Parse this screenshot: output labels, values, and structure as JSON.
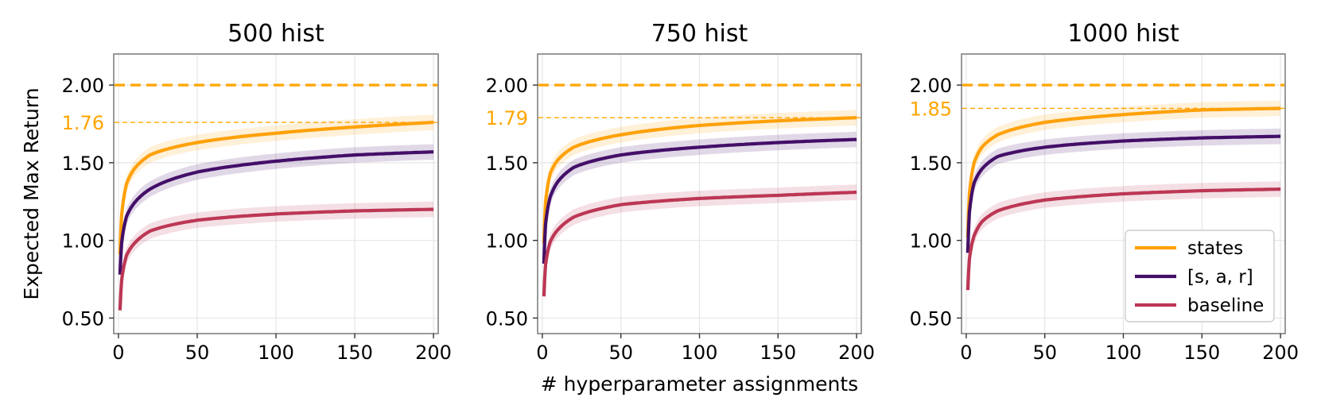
{
  "chart_data": [
    {
      "type": "line",
      "title": "500 hist",
      "xlabel": "",
      "ylabel": "Expected Max Return",
      "xlim": [
        -3,
        203
      ],
      "ylim": [
        0.4,
        2.2
      ],
      "xticks": [
        0,
        50,
        100,
        150,
        200
      ],
      "yticks": [
        0.5,
        1.0,
        1.5,
        2.0
      ],
      "ytick_labels": [
        "0.50",
        "1.00",
        "1.50",
        "2.00"
      ],
      "yscale": "linear",
      "grid": true,
      "reference_lines": [
        {
          "y": 2.0,
          "style": "dashed-thick",
          "color": "#FFA500"
        },
        {
          "y": 1.76,
          "label": "1.76",
          "style": "dashed-thin",
          "color": "#FFA500"
        }
      ],
      "series": [
        {
          "name": "states",
          "color": "#FFA10A",
          "x": [
            1,
            2,
            5,
            10,
            20,
            50,
            100,
            150,
            200
          ],
          "values": [
            0.91,
            1.16,
            1.36,
            1.46,
            1.55,
            1.63,
            1.69,
            1.73,
            1.76
          ]
        },
        {
          "name": "[s, a, r]",
          "color": "#430F68",
          "x": [
            1,
            2,
            5,
            10,
            20,
            50,
            100,
            150,
            200
          ],
          "values": [
            0.78,
            0.98,
            1.15,
            1.24,
            1.33,
            1.44,
            1.51,
            1.55,
            1.57
          ]
        },
        {
          "name": "baseline",
          "color": "#BC3754",
          "x": [
            1,
            2,
            5,
            10,
            20,
            50,
            100,
            150,
            200
          ],
          "values": [
            0.55,
            0.74,
            0.9,
            0.98,
            1.06,
            1.13,
            1.17,
            1.19,
            1.2
          ]
        }
      ]
    },
    {
      "type": "line",
      "title": "750 hist",
      "xlabel": "# hyperparameter assignments",
      "ylabel": "",
      "xlim": [
        -3,
        203
      ],
      "ylim": [
        0.4,
        2.2
      ],
      "xticks": [
        0,
        50,
        100,
        150,
        200
      ],
      "yticks": [
        0.5,
        1.0,
        1.5,
        2.0
      ],
      "ytick_labels": [
        "0.50",
        "1.00",
        "1.50",
        "2.00"
      ],
      "yscale": "linear",
      "grid": true,
      "reference_lines": [
        {
          "y": 2.0,
          "style": "dashed-thick",
          "color": "#FFA500"
        },
        {
          "y": 1.79,
          "label": "1.79",
          "style": "dashed-thin",
          "color": "#FFA500"
        }
      ],
      "series": [
        {
          "name": "states",
          "color": "#FFA10A",
          "x": [
            1,
            2,
            5,
            10,
            20,
            50,
            100,
            150,
            200
          ],
          "values": [
            0.98,
            1.24,
            1.43,
            1.52,
            1.6,
            1.68,
            1.74,
            1.77,
            1.79
          ]
        },
        {
          "name": "[s, a, r]",
          "color": "#430F68",
          "x": [
            1,
            2,
            5,
            10,
            20,
            50,
            100,
            150,
            200
          ],
          "values": [
            0.85,
            1.1,
            1.28,
            1.38,
            1.47,
            1.55,
            1.6,
            1.63,
            1.65
          ]
        },
        {
          "name": "baseline",
          "color": "#BC3754",
          "x": [
            1,
            2,
            5,
            10,
            20,
            50,
            100,
            150,
            200
          ],
          "values": [
            0.64,
            0.84,
            0.99,
            1.07,
            1.15,
            1.23,
            1.27,
            1.29,
            1.31
          ]
        }
      ]
    },
    {
      "type": "line",
      "title": "1000 hist",
      "xlabel": "",
      "ylabel": "",
      "xlim": [
        -3,
        203
      ],
      "ylim": [
        0.4,
        2.2
      ],
      "xticks": [
        0,
        50,
        100,
        150,
        200
      ],
      "yticks": [
        0.5,
        1.0,
        1.5,
        2.0
      ],
      "ytick_labels": [
        "0.50",
        "1.00",
        "1.50",
        "2.00"
      ],
      "yscale": "linear",
      "grid": true,
      "legend": "lower-right",
      "reference_lines": [
        {
          "y": 2.0,
          "style": "dashed-thick",
          "color": "#FFA500"
        },
        {
          "y": 1.85,
          "label": "1.85",
          "style": "dashed-thin",
          "color": "#FFA500"
        }
      ],
      "series": [
        {
          "name": "states",
          "color": "#FFA10A",
          "x": [
            1,
            2,
            5,
            10,
            20,
            50,
            100,
            150,
            200
          ],
          "values": [
            1.02,
            1.3,
            1.5,
            1.6,
            1.68,
            1.76,
            1.81,
            1.84,
            1.85
          ]
        },
        {
          "name": "[s, a, r]",
          "color": "#430F68",
          "x": [
            1,
            2,
            5,
            10,
            20,
            50,
            100,
            150,
            200
          ],
          "values": [
            0.92,
            1.18,
            1.37,
            1.46,
            1.54,
            1.6,
            1.64,
            1.66,
            1.67
          ]
        },
        {
          "name": "baseline",
          "color": "#BC3754",
          "x": [
            1,
            2,
            5,
            10,
            20,
            50,
            100,
            150,
            200
          ],
          "values": [
            0.68,
            0.88,
            1.03,
            1.12,
            1.19,
            1.26,
            1.3,
            1.32,
            1.33
          ]
        }
      ]
    }
  ],
  "legend": {
    "items": [
      {
        "label": "states",
        "color": "#FFA10A"
      },
      {
        "label": "[s, a, r]",
        "color": "#430F68"
      },
      {
        "label": "baseline",
        "color": "#BC3754"
      }
    ]
  }
}
